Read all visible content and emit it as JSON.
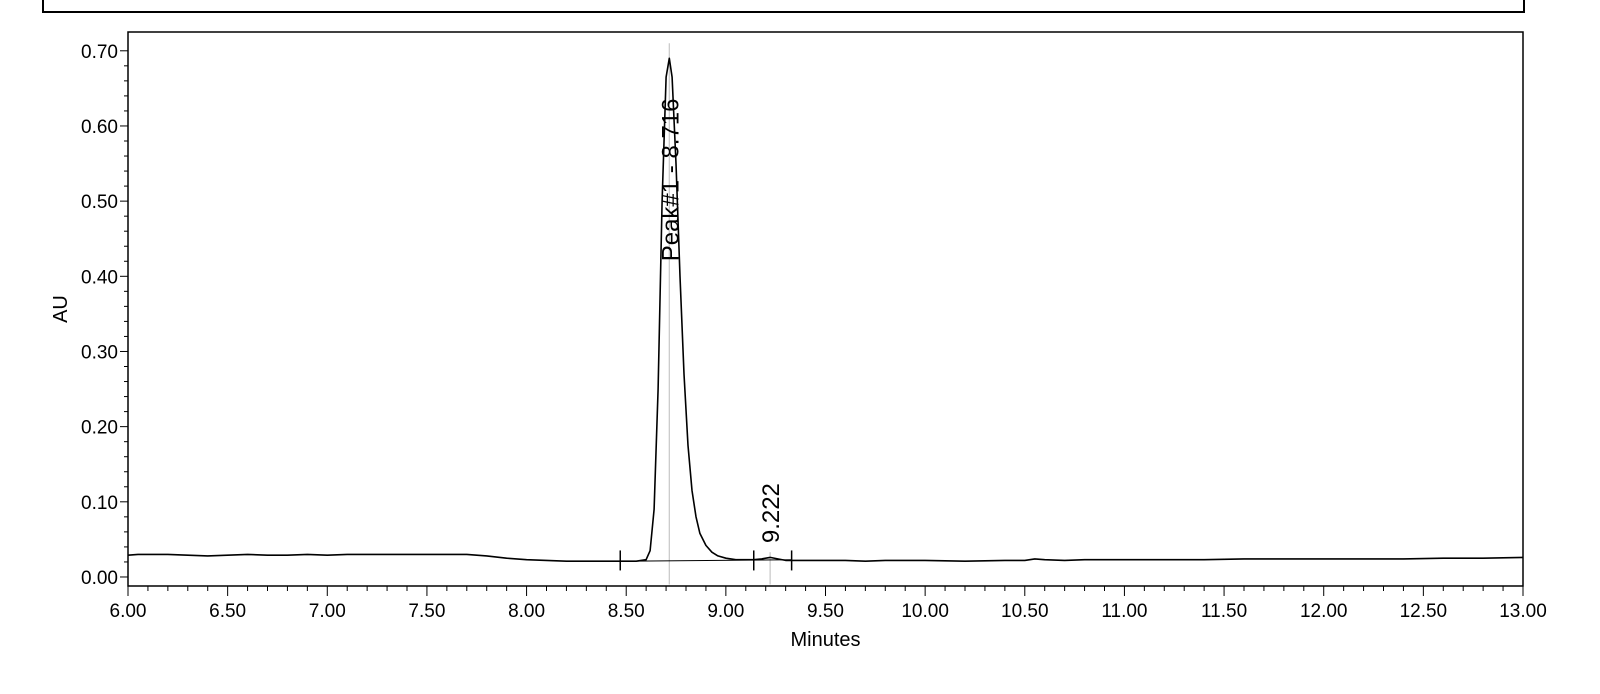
{
  "chart_data": {
    "type": "line",
    "xlabel": "Minutes",
    "ylabel": "AU",
    "xlim": [
      6.0,
      13.0
    ],
    "ylim": [
      -0.012,
      0.725
    ],
    "x_ticks": [
      "6.00",
      "6.50",
      "7.00",
      "7.50",
      "8.00",
      "8.50",
      "9.00",
      "9.50",
      "10.00",
      "10.50",
      "11.00",
      "11.50",
      "12.00",
      "12.50",
      "13.00"
    ],
    "y_ticks": [
      "0.00",
      "0.10",
      "0.20",
      "0.30",
      "0.40",
      "0.50",
      "0.60",
      "0.70"
    ],
    "grid": false,
    "series": [
      {
        "x": [
          6.0,
          6.05,
          6.1,
          6.2,
          6.3,
          6.4,
          6.5,
          6.6,
          6.7,
          6.8,
          6.9,
          7.0,
          7.1,
          7.2,
          7.3,
          7.4,
          7.5,
          7.6,
          7.7,
          7.8,
          7.9,
          8.0,
          8.1,
          8.2,
          8.3,
          8.4,
          8.47,
          8.55,
          8.6,
          8.62,
          8.64,
          8.66,
          8.68,
          8.7,
          8.716,
          8.73,
          8.75,
          8.77,
          8.79,
          8.81,
          8.83,
          8.85,
          8.87,
          8.9,
          8.93,
          8.96,
          9.0,
          9.05,
          9.1,
          9.14,
          9.18,
          9.222,
          9.26,
          9.3,
          9.33,
          9.4,
          9.5,
          9.6,
          9.7,
          9.8,
          9.9,
          10.0,
          10.2,
          10.4,
          10.5,
          10.55,
          10.6,
          10.7,
          10.8,
          11.0,
          11.2,
          11.4,
          11.6,
          11.8,
          12.0,
          12.2,
          12.4,
          12.6,
          12.8,
          13.0
        ],
        "y": [
          0.029,
          0.03,
          0.03,
          0.03,
          0.029,
          0.028,
          0.029,
          0.03,
          0.029,
          0.029,
          0.03,
          0.029,
          0.03,
          0.03,
          0.03,
          0.03,
          0.03,
          0.03,
          0.03,
          0.028,
          0.025,
          0.023,
          0.022,
          0.021,
          0.021,
          0.021,
          0.021,
          0.021,
          0.023,
          0.035,
          0.09,
          0.25,
          0.5,
          0.665,
          0.69,
          0.665,
          0.55,
          0.4,
          0.27,
          0.175,
          0.115,
          0.08,
          0.058,
          0.042,
          0.033,
          0.028,
          0.025,
          0.023,
          0.023,
          0.023,
          0.024,
          0.026,
          0.024,
          0.022,
          0.022,
          0.022,
          0.022,
          0.022,
          0.021,
          0.022,
          0.022,
          0.022,
          0.021,
          0.022,
          0.022,
          0.024,
          0.023,
          0.022,
          0.023,
          0.023,
          0.023,
          0.023,
          0.024,
          0.024,
          0.024,
          0.024,
          0.024,
          0.025,
          0.025,
          0.026
        ]
      }
    ],
    "peak_labels": [
      {
        "x": 8.716,
        "y": 0.42,
        "text": "Peak#1 - 8.716"
      },
      {
        "x": 9.222,
        "y": 0.045,
        "text": "9.222"
      }
    ],
    "integration_marks": [
      8.47,
      9.14,
      9.33
    ]
  }
}
